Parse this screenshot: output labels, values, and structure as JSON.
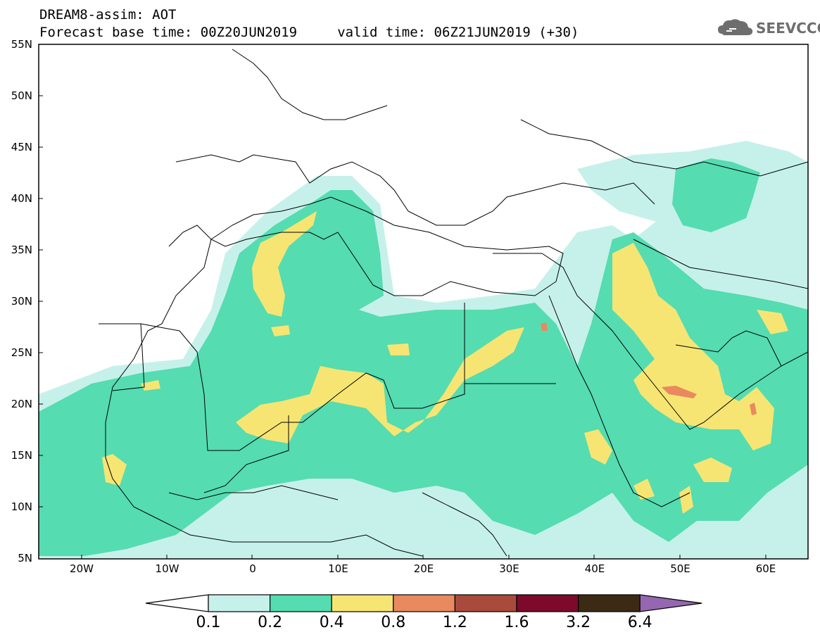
{
  "header": {
    "title_line1": "DREAM8-assim: AOT",
    "title_line2": "Forecast base time: 00Z20JUN2019     valid time: 06Z21JUN2019 (+30)"
  },
  "logo": {
    "text": "SEEVCCC",
    "icon": "cloud-icon",
    "color": "#6e6e6e"
  },
  "map": {
    "lat_labels": [
      "55N",
      "50N",
      "45N",
      "40N",
      "35N",
      "30N",
      "25N",
      "20N",
      "15N",
      "10N",
      "5N"
    ],
    "lon_labels": [
      "20W",
      "10W",
      "0",
      "10E",
      "20E",
      "30E",
      "40E",
      "50E",
      "60E"
    ]
  },
  "colorbar": {
    "labels": [
      "0.1",
      "0.2",
      "0.4",
      "0.8",
      "1.2",
      "1.6",
      "3.2",
      "6.4"
    ],
    "colors": [
      "#c6f1ea",
      "#55dcb0",
      "#f7e573",
      "#e9895f",
      "#a84b3c",
      "#7d0a2b",
      "#3c2a15",
      "#9567b1"
    ],
    "low_color": "#ffffff"
  }
}
